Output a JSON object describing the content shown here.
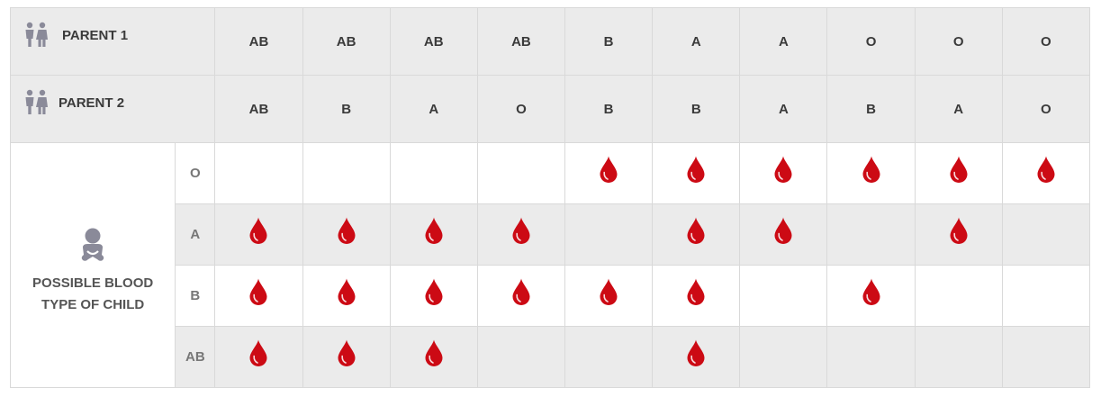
{
  "parent1": {
    "label": "PARENT 1",
    "values": [
      "AB",
      "AB",
      "AB",
      "AB",
      "B",
      "A",
      "A",
      "O",
      "O",
      "O"
    ]
  },
  "parent2": {
    "label": "PARENT 2",
    "values": [
      "AB",
      "B",
      "A",
      "O",
      "B",
      "B",
      "A",
      "B",
      "A",
      "O"
    ]
  },
  "child": {
    "label_line1": "POSSIBLE BLOOD",
    "label_line2": "TYPE OF CHILD",
    "rows": [
      {
        "type": "O",
        "possible": [
          false,
          false,
          false,
          false,
          true,
          true,
          true,
          true,
          true,
          true
        ]
      },
      {
        "type": "A",
        "possible": [
          true,
          true,
          true,
          true,
          false,
          true,
          true,
          false,
          true,
          false
        ]
      },
      {
        "type": "B",
        "possible": [
          true,
          true,
          true,
          true,
          true,
          true,
          false,
          true,
          false,
          false
        ]
      },
      {
        "type": "AB",
        "possible": [
          true,
          true,
          true,
          false,
          false,
          true,
          false,
          false,
          false,
          false
        ]
      }
    ]
  },
  "colors": {
    "drop": "#cc0a14",
    "header_bg": "#ebebeb",
    "icon": "#8a8a99"
  },
  "icons": {
    "parents": "couple-icon",
    "child": "baby-icon",
    "possible": "blood-drop-icon"
  }
}
